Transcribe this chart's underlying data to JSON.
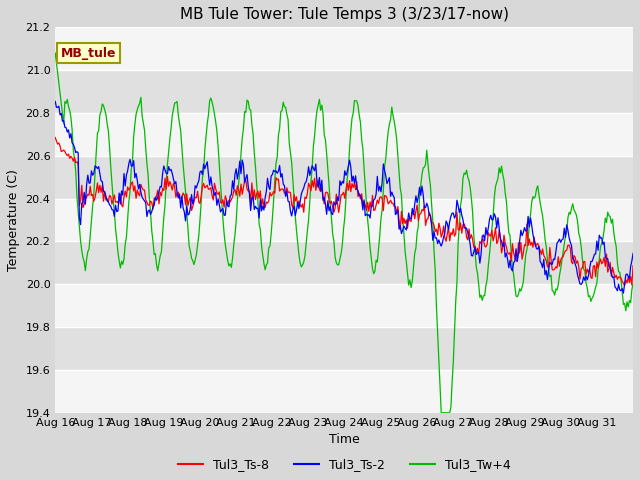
{
  "title": "MB Tule Tower: Tule Temps 3 (3/23/17-now)",
  "xlabel": "Time",
  "ylabel": "Temperature (C)",
  "ylim": [
    19.4,
    21.2
  ],
  "xlim_days": 16,
  "x_tick_labels": [
    "Aug 16",
    "Aug 17",
    "Aug 18",
    "Aug 19",
    "Aug 20",
    "Aug 21",
    "Aug 22",
    "Aug 23",
    "Aug 24",
    "Aug 25",
    "Aug 26",
    "Aug 27",
    "Aug 28",
    "Aug 29",
    "Aug 30",
    "Aug 31"
  ],
  "legend_labels": [
    "Tul3_Ts-8",
    "Tul3_Ts-2",
    "Tul3_Tw+4"
  ],
  "legend_colors": [
    "red",
    "blue",
    "green"
  ],
  "box_label": "MB_tule",
  "box_color": "#ffffcc",
  "box_edge_color": "#999900",
  "box_text_color": "#990000",
  "fig_bg": "#d8d8d8",
  "plot_bg_light": "#f0f0f0",
  "plot_bg_dark": "#e0e0e0",
  "title_fontsize": 11,
  "axis_label_fontsize": 9,
  "tick_fontsize": 8
}
